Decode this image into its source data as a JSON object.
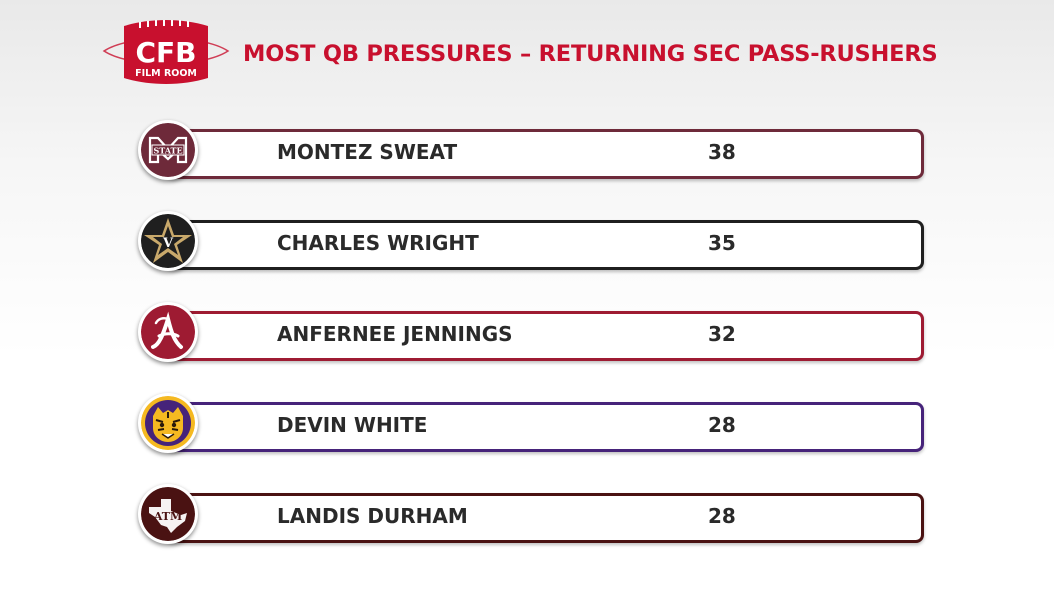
{
  "logo": {
    "main_text": "CFB",
    "sub_text": "FILM ROOM",
    "icon": "football-icon",
    "color": "#c8102e"
  },
  "chart_data": {
    "type": "table",
    "title": "MOST QB PRESSURES – RETURNING SEC PASS-RUSHERS",
    "title_color": "#c8102e",
    "rows": [
      {
        "name": "MONTEZ SWEAT",
        "value": 38,
        "team_icon": "mississippi-state-logo-icon",
        "color": "#6e2a3a",
        "badge_text": "STATE"
      },
      {
        "name": "CHARLES WRIGHT",
        "value": 35,
        "team_icon": "vanderbilt-star-logo-icon",
        "color": "#1f1f1f",
        "badge_text": "V"
      },
      {
        "name": "ANFERNEE JENNINGS",
        "value": 32,
        "team_icon": "alabama-script-a-logo-icon",
        "color": "#9e1b32",
        "badge_text": ""
      },
      {
        "name": "DEVIN WHITE",
        "value": 28,
        "team_icon": "lsu-tiger-logo-icon",
        "color": "#46237a",
        "badge_text": ""
      },
      {
        "name": "LANDIS DURHAM",
        "value": 28,
        "team_icon": "texas-am-logo-icon",
        "color": "#4a1212",
        "badge_text": "ATM"
      }
    ]
  }
}
